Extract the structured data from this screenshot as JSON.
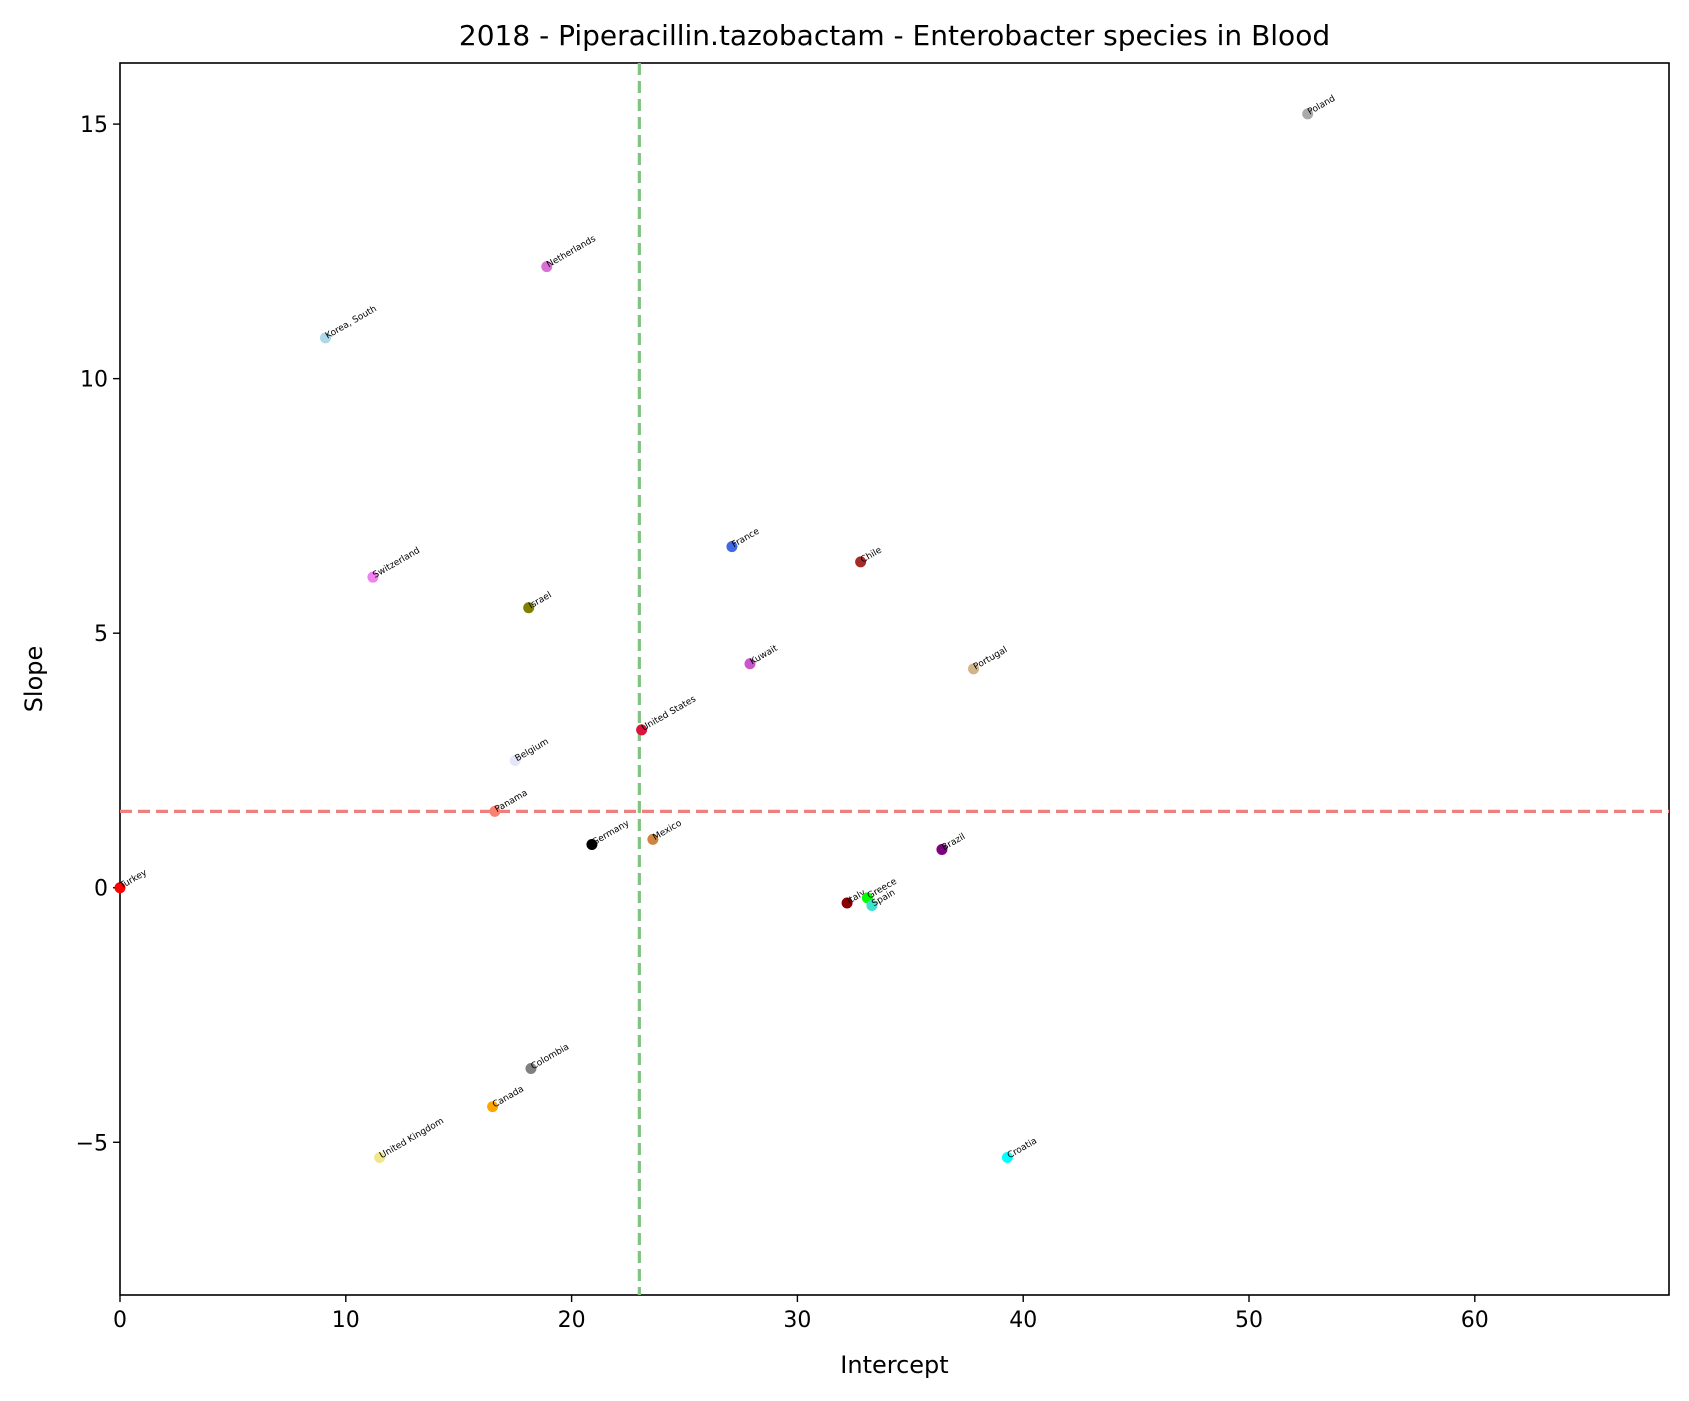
{
  "chart_data": {
    "type": "scatter",
    "title": "2018 - Piperacillin.tazobactam - Enterobacter species in Blood",
    "xlabel": "Intercept",
    "ylabel": "Slope",
    "xlim": [
      0,
      68.6
    ],
    "ylim": [
      -8.0,
      16.2
    ],
    "xticks": [
      0,
      10,
      20,
      30,
      40,
      50,
      60
    ],
    "yticks": [
      -5,
      0,
      5,
      10,
      15
    ],
    "xtick_labels": [
      "0",
      "10",
      "20",
      "30",
      "40",
      "50",
      "60"
    ],
    "ytick_labels": [
      "−5",
      "0",
      "5",
      "10",
      "15"
    ],
    "grid": false,
    "reference_lines": {
      "vertical_x": 23.0,
      "vertical_color": "#7fc47f",
      "horizontal_y": 1.5,
      "horizontal_color": "#f08080"
    },
    "points": [
      {
        "label": "Poland",
        "x": 52.6,
        "y": 15.2,
        "color": "#a9a9a9"
      },
      {
        "label": "Netherlands",
        "x": 18.9,
        "y": 12.2,
        "color": "#da70d6"
      },
      {
        "label": "Korea, South",
        "x": 9.1,
        "y": 10.8,
        "color": "#add8e6"
      },
      {
        "label": "France",
        "x": 27.1,
        "y": 6.7,
        "color": "#4169e1"
      },
      {
        "label": "Chile",
        "x": 32.8,
        "y": 6.4,
        "color": "#a52a2a"
      },
      {
        "label": "Switzerland",
        "x": 11.2,
        "y": 6.1,
        "color": "#ee82ee"
      },
      {
        "label": "Israel",
        "x": 18.1,
        "y": 5.5,
        "color": "#808000"
      },
      {
        "label": "Kuwait",
        "x": 27.9,
        "y": 4.4,
        "color": "#cc55cc"
      },
      {
        "label": "Portugal",
        "x": 37.8,
        "y": 4.3,
        "color": "#d2b48c"
      },
      {
        "label": "United States",
        "x": 23.1,
        "y": 3.1,
        "color": "#dc143c"
      },
      {
        "label": "Belgium",
        "x": 17.5,
        "y": 2.5,
        "color": "#e6e6fa"
      },
      {
        "label": "Panama",
        "x": 16.6,
        "y": 1.5,
        "color": "#fa8072"
      },
      {
        "label": "Germany",
        "x": 20.9,
        "y": 0.85,
        "color": "#000000"
      },
      {
        "label": "Mexico",
        "x": 23.6,
        "y": 0.95,
        "color": "#cd853f"
      },
      {
        "label": "Brazil",
        "x": 36.4,
        "y": 0.75,
        "color": "#800080"
      },
      {
        "label": "Turkey",
        "x": 0.0,
        "y": 0.0,
        "color": "#ff0000"
      },
      {
        "label": "Italy",
        "x": 32.2,
        "y": -0.3,
        "color": "#8b0000"
      },
      {
        "label": "Greece",
        "x": 33.1,
        "y": -0.2,
        "color": "#00ff00"
      },
      {
        "label": "Spain",
        "x": 33.3,
        "y": -0.35,
        "color": "#40e0d0"
      },
      {
        "label": "Colombia",
        "x": 18.2,
        "y": -3.55,
        "color": "#808080"
      },
      {
        "label": "Canada",
        "x": 16.5,
        "y": -4.3,
        "color": "#ffa500"
      },
      {
        "label": "United Kingdom",
        "x": 11.5,
        "y": -5.3,
        "color": "#f0e68c"
      },
      {
        "label": "Croatia",
        "x": 39.3,
        "y": -5.3,
        "color": "#00ffff"
      }
    ]
  }
}
